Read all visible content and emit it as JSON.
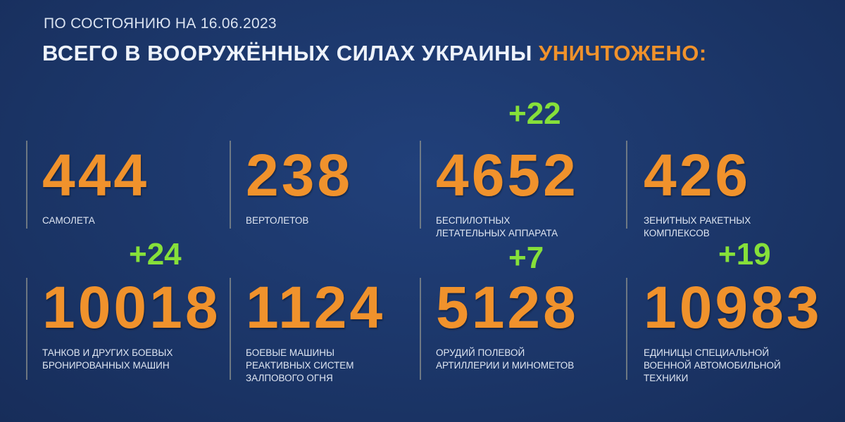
{
  "header": {
    "subtitle": "ПО СОСТОЯНИЮ НА 16.06.2023",
    "title_main": "ВСЕГО В ВООРУЖЁННЫХ СИЛАХ УКРАИНЫ",
    "title_highlight": "УНИЧТОЖЕНО:"
  },
  "colors": {
    "background": "#1b3567",
    "number": "#f0922c",
    "delta": "#86e03a",
    "text": "#dfe6f2"
  },
  "stats": [
    {
      "value": "444",
      "label": "САМОЛЕТА",
      "delta": ""
    },
    {
      "value": "238",
      "label": "ВЕРТОЛЕТОВ",
      "delta": ""
    },
    {
      "value": "4652",
      "label": "БЕСПИЛОТНЫХ\nЛЕТАТЕЛЬНЫХ АППАРАТА",
      "delta": "+22"
    },
    {
      "value": "426",
      "label": "ЗЕНИТНЫХ РАКЕТНЫХ\nКОМПЛЕКСОВ",
      "delta": ""
    },
    {
      "value": "10018",
      "label": "ТАНКОВ И ДРУГИХ БОЕВЫХ\nБРОНИРОВАННЫХ МАШИН",
      "delta": "+24"
    },
    {
      "value": "1124",
      "label": "БОЕВЫЕ МАШИНЫ\nРЕАКТИВНЫХ СИСТЕМ\nЗАЛПОВОГО ОГНЯ",
      "delta": ""
    },
    {
      "value": "5128",
      "label": "ОРУДИЙ ПОЛЕВОЙ\nАРТИЛЛЕРИИ И МИНОМЕТОВ",
      "delta": "+7"
    },
    {
      "value": "10983",
      "label": "ЕДИНИЦЫ СПЕЦИАЛЬНОЙ\nВОЕННОЙ АВТОМОБИЛЬНОЙ\nТЕХНИКИ",
      "delta": "+19"
    }
  ]
}
